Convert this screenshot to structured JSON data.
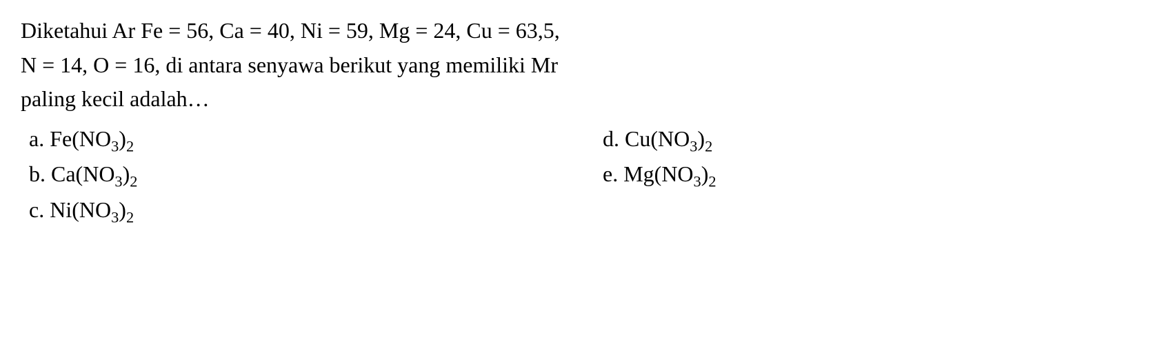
{
  "question": {
    "line1": "Diketahui Ar Fe = 56, Ca = 40, Ni = 59, Mg = 24, Cu = 63,5,",
    "line2": "N = 14, O = 16, di antara senyawa berikut yang memiliki Mr",
    "line3": "paling kecil adalah…"
  },
  "options": {
    "a": {
      "label": "a. ",
      "metal": "Fe",
      "anion_base": "(NO",
      "sub1": "3",
      "close": ")",
      "sub2": "2"
    },
    "b": {
      "label": "b. ",
      "metal": "Ca",
      "anion_base": "(NO",
      "sub1": "3",
      "close": ")",
      "sub2": "2"
    },
    "c": {
      "label": "c. ",
      "metal": "Ni",
      "anion_base": "(NO",
      "sub1": "3",
      "close": ")",
      "sub2": "2"
    },
    "d": {
      "label": "d. ",
      "metal": "Cu",
      "anion_base": "(NO",
      "sub1": "3",
      "close": ")",
      "sub2": "2"
    },
    "e": {
      "label": "e. ",
      "metal": "Mg",
      "anion_base": "(NO",
      "sub1": "3",
      "close": ")",
      "sub2": "2"
    }
  },
  "style": {
    "font_family": "Times New Roman",
    "font_size_pt": 24,
    "text_color": "#000000",
    "background_color": "#ffffff"
  }
}
